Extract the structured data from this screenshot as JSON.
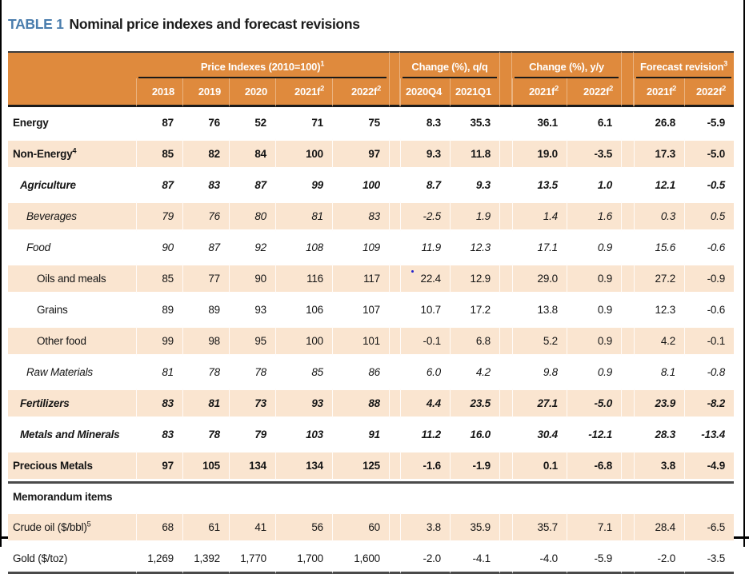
{
  "title": {
    "tag": "TABLE 1",
    "text": "Nominal price indexes and forecast revisions"
  },
  "colors": {
    "header_orange": "#DF8A3D",
    "row_peach": "#FAE5D0",
    "title_blue": "#4A7DAD",
    "rule_dark": "#1a1a1a"
  },
  "header": {
    "groups": [
      {
        "label": "Price Indexes (2010=100)",
        "sup": "1"
      },
      {
        "label": "Change (%), q/q",
        "sup": ""
      },
      {
        "label": "Change (%), y/y",
        "sup": ""
      },
      {
        "label": "Forecast revision",
        "sup": "3"
      }
    ],
    "columns": [
      {
        "label": "2018",
        "sup": ""
      },
      {
        "label": "2019",
        "sup": ""
      },
      {
        "label": "2020",
        "sup": ""
      },
      {
        "label": "2021f",
        "sup": "2"
      },
      {
        "label": "2022f",
        "sup": "2"
      },
      {
        "label": "2020Q4",
        "sup": ""
      },
      {
        "label": "2021Q1",
        "sup": ""
      },
      {
        "label": "2021f",
        "sup": "2"
      },
      {
        "label": "2022f",
        "sup": "2"
      },
      {
        "label": "2021f",
        "sup": "2"
      },
      {
        "label": "2022f",
        "sup": "2"
      }
    ]
  },
  "rows": [
    {
      "label": "Energy",
      "sup": "",
      "style": "bold",
      "indent": 0,
      "values": [
        "87",
        "76",
        "52",
        "71",
        "75",
        "8.3",
        "35.3",
        "36.1",
        "6.1",
        "26.8",
        "-5.9"
      ]
    },
    {
      "label": "Non-Energy",
      "sup": "4",
      "style": "bold",
      "indent": 0,
      "values": [
        "85",
        "82",
        "84",
        "100",
        "97",
        "9.3",
        "11.8",
        "19.0",
        "-3.5",
        "17.3",
        "-5.0"
      ]
    },
    {
      "label": "Agriculture",
      "sup": "",
      "style": "bolditalic",
      "indent": 1,
      "values": [
        "87",
        "83",
        "87",
        "99",
        "100",
        "8.7",
        "9.3",
        "13.5",
        "1.0",
        "12.1",
        "-0.5"
      ]
    },
    {
      "label": "Beverages",
      "sup": "",
      "style": "italic",
      "indent": 2,
      "values": [
        "79",
        "76",
        "80",
        "81",
        "83",
        "-2.5",
        "1.9",
        "1.4",
        "1.6",
        "0.3",
        "0.5"
      ]
    },
    {
      "label": "Food",
      "sup": "",
      "style": "italic",
      "indent": 2,
      "values": [
        "90",
        "87",
        "92",
        "108",
        "109",
        "11.9",
        "12.3",
        "17.1",
        "0.9",
        "15.6",
        "-0.6"
      ]
    },
    {
      "label": "Oils and meals",
      "sup": "",
      "style": "regular",
      "indent": 3,
      "values": [
        "85",
        "77",
        "90",
        "116",
        "117",
        "22.4",
        "12.9",
        "29.0",
        "0.9",
        "27.2",
        "-0.9"
      ]
    },
    {
      "label": "Grains",
      "sup": "",
      "style": "regular",
      "indent": 3,
      "values": [
        "89",
        "89",
        "93",
        "106",
        "107",
        "10.7",
        "17.2",
        "13.8",
        "0.9",
        "12.3",
        "-0.6"
      ]
    },
    {
      "label": "Other food",
      "sup": "",
      "style": "regular",
      "indent": 3,
      "values": [
        "99",
        "98",
        "95",
        "100",
        "101",
        "-0.1",
        "6.8",
        "5.2",
        "0.9",
        "4.2",
        "-0.1"
      ]
    },
    {
      "label": "Raw Materials",
      "sup": "",
      "style": "italic",
      "indent": 2,
      "values": [
        "81",
        "78",
        "78",
        "85",
        "86",
        "6.0",
        "4.2",
        "9.8",
        "0.9",
        "8.1",
        "-0.8"
      ]
    },
    {
      "label": "Fertilizers",
      "sup": "",
      "style": "bolditalic",
      "indent": 1,
      "values": [
        "83",
        "81",
        "73",
        "93",
        "88",
        "4.4",
        "23.5",
        "27.1",
        "-5.0",
        "23.9",
        "-8.2"
      ]
    },
    {
      "label": "Metals and Minerals",
      "sup": "",
      "style": "bolditalic",
      "indent": 1,
      "values": [
        "83",
        "78",
        "79",
        "103",
        "91",
        "11.2",
        "16.0",
        "30.4",
        "-12.1",
        "28.3",
        "-13.4"
      ]
    },
    {
      "label": "Precious Metals",
      "sup": "",
      "style": "bold",
      "indent": 0,
      "values": [
        "97",
        "105",
        "134",
        "134",
        "125",
        "-1.6",
        "-1.9",
        "0.1",
        "-6.8",
        "3.8",
        "-4.9"
      ]
    },
    {
      "label": "Memorandum items",
      "sup": "",
      "style": "bold",
      "indent": 0,
      "type": "section",
      "values": []
    },
    {
      "label": "Crude oil ($/bbl)",
      "sup": "5",
      "style": "regular",
      "indent": 0,
      "values": [
        "68",
        "61",
        "41",
        "56",
        "60",
        "3.8",
        "35.9",
        "35.7",
        "7.1",
        "28.4",
        "-6.5"
      ]
    },
    {
      "label": "Gold ($/toz)",
      "sup": "",
      "style": "regular",
      "indent": 0,
      "values": [
        "1,269",
        "1,392",
        "1,770",
        "1,700",
        "1,600",
        "-2.0",
        "-4.1",
        "-4.0",
        "-5.9",
        "-2.0",
        "-3.5"
      ]
    }
  ]
}
